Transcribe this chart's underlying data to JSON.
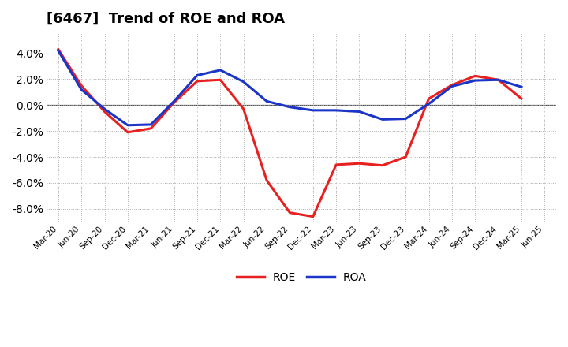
{
  "title": "[6467]  Trend of ROE and ROA",
  "x_labels": [
    "Mar-20",
    "Jun-20",
    "Sep-20",
    "Dec-20",
    "Mar-21",
    "Jun-21",
    "Sep-21",
    "Dec-21",
    "Mar-22",
    "Jun-22",
    "Sep-22",
    "Dec-22",
    "Mar-23",
    "Jun-23",
    "Sep-23",
    "Dec-23",
    "Mar-24",
    "Jun-24",
    "Sep-24",
    "Dec-24",
    "Mar-25",
    "Jun-25"
  ],
  "roe": [
    4.3,
    1.5,
    -0.5,
    -2.1,
    -1.8,
    0.2,
    1.85,
    1.95,
    -0.3,
    -5.8,
    -8.3,
    -8.6,
    -4.6,
    -4.5,
    -4.65,
    -4.0,
    0.5,
    1.55,
    2.25,
    1.95,
    0.5,
    null
  ],
  "roa": [
    4.2,
    1.2,
    -0.3,
    -1.55,
    -1.5,
    0.3,
    2.3,
    2.7,
    1.8,
    0.3,
    -0.15,
    -0.4,
    -0.4,
    -0.5,
    -1.1,
    -1.05,
    0.1,
    1.45,
    1.9,
    1.95,
    1.4,
    null
  ],
  "roe_color": "#e82020",
  "roa_color": "#1a35c8",
  "background_color": "#ffffff",
  "grid_color": "#aaaaaa",
  "ylim": [
    -9.0,
    5.5
  ],
  "yticks": [
    -8.0,
    -6.0,
    -4.0,
    -2.0,
    0.0,
    2.0,
    4.0
  ],
  "line_width": 2.2
}
